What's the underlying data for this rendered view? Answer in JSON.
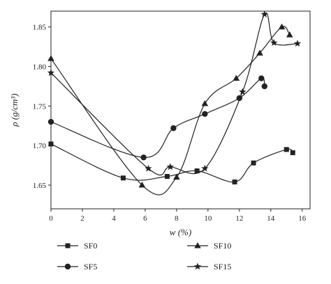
{
  "chart_data": {
    "type": "line",
    "xlabel": "w (%)",
    "ylabel": "ρ (g/cm³)",
    "xlim": [
      0,
      16.5
    ],
    "ylim": [
      1.62,
      1.87
    ],
    "x_ticks": [
      "0",
      "2",
      "4",
      "6",
      "8",
      "10",
      "12",
      "14",
      "16"
    ],
    "y_ticks": [
      "1.65",
      "1.70",
      "1.75",
      "1.80",
      "1.85"
    ],
    "grid": false,
    "legend_position": "bottom",
    "series": [
      {
        "name": "SF0",
        "marker": "square",
        "x": [
          0.0,
          4.6,
          7.4,
          9.3,
          11.7,
          12.9,
          15.0,
          15.4
        ],
        "y": [
          1.702,
          1.659,
          1.661,
          1.668,
          1.654,
          1.678,
          1.695,
          1.691
        ]
      },
      {
        "name": "SF5",
        "marker": "circle",
        "x": [
          0.0,
          5.9,
          7.8,
          9.8,
          12.0,
          13.4,
          13.6
        ],
        "y": [
          1.73,
          1.685,
          1.722,
          1.74,
          1.76,
          1.785,
          1.775
        ]
      },
      {
        "name": "SF10",
        "marker": "triangle",
        "x": [
          0.0,
          5.8,
          8.0,
          9.8,
          11.8,
          13.3,
          14.7,
          15.2
        ],
        "y": [
          1.81,
          1.65,
          1.66,
          1.753,
          1.785,
          1.817,
          1.85,
          1.84
        ]
      },
      {
        "name": "SF15",
        "marker": "star",
        "x": [
          0.0,
          6.2,
          7.6,
          9.8,
          12.2,
          13.6,
          14.2,
          15.7
        ],
        "y": [
          1.792,
          1.671,
          1.673,
          1.671,
          1.768,
          1.866,
          1.83,
          1.829
        ]
      }
    ]
  }
}
